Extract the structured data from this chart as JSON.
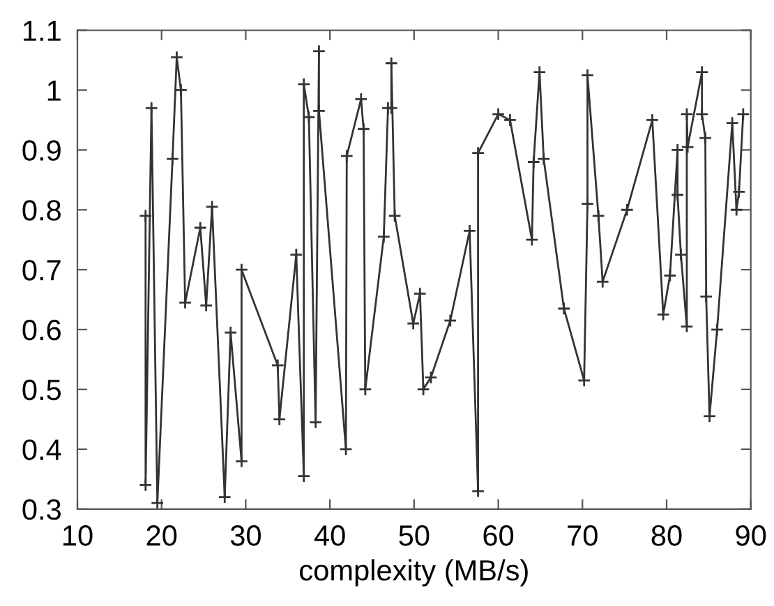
{
  "chart_data": {
    "type": "line",
    "xlabel": "complexity (MB/s)",
    "xlim": [
      10,
      90
    ],
    "xticks": [
      10,
      20,
      30,
      40,
      50,
      60,
      70,
      80,
      90
    ],
    "ylim": [
      0.3,
      1.1
    ],
    "yticks": [
      0.3,
      0.4,
      0.5,
      0.6,
      0.7,
      0.8,
      0.9,
      1,
      1.1
    ],
    "grid": false,
    "marker": "cross",
    "line_style": "solid",
    "series": [
      {
        "color": "#333333",
        "x": [
          18.1,
          18.1,
          18.8,
          19.5,
          21.3,
          21.8,
          22.3,
          22.8,
          24.6,
          25.3,
          26.0,
          27.5,
          28.2,
          29.5,
          29.5,
          33.8,
          34.0,
          36.0,
          36.9,
          36.9,
          37.5,
          38.3,
          38.7,
          38.7,
          41.9,
          42.0,
          43.7,
          44.0,
          44.2,
          46.4,
          46.9,
          47.3,
          47.3,
          47.7,
          49.9,
          50.7,
          51.1,
          52.0,
          54.3,
          56.6,
          57.6,
          57.6,
          60.0,
          61.4,
          64.0,
          64.2,
          64.9,
          65.4,
          67.8,
          70.2,
          70.6,
          70.6,
          71.9,
          72.4,
          75.3,
          78.3,
          79.6,
          80.4,
          81.3,
          81.3,
          81.7,
          82.4,
          82.4,
          82.5,
          84.2,
          84.2,
          84.6,
          84.7,
          85.1,
          86.0,
          87.8,
          88.3,
          88.6,
          89.1
        ],
        "values": [
          0.79,
          0.34,
          0.97,
          0.31,
          0.885,
          1.055,
          1.0,
          0.645,
          0.77,
          0.64,
          0.805,
          0.32,
          0.595,
          0.38,
          0.7,
          0.54,
          0.45,
          0.725,
          0.355,
          1.01,
          0.955,
          0.445,
          1.065,
          0.965,
          0.4,
          0.89,
          0.985,
          0.935,
          0.5,
          0.755,
          0.97,
          0.97,
          1.045,
          0.79,
          0.61,
          0.66,
          0.5,
          0.52,
          0.615,
          0.765,
          0.33,
          0.895,
          0.96,
          0.95,
          0.75,
          0.88,
          1.03,
          0.885,
          0.635,
          0.515,
          0.81,
          1.025,
          0.79,
          0.68,
          0.8,
          0.95,
          0.625,
          0.69,
          0.9,
          0.825,
          0.725,
          0.605,
          0.96,
          0.905,
          1.03,
          0.96,
          0.92,
          0.655,
          0.455,
          0.6,
          0.945,
          0.8,
          0.83,
          0.96
        ]
      }
    ]
  }
}
